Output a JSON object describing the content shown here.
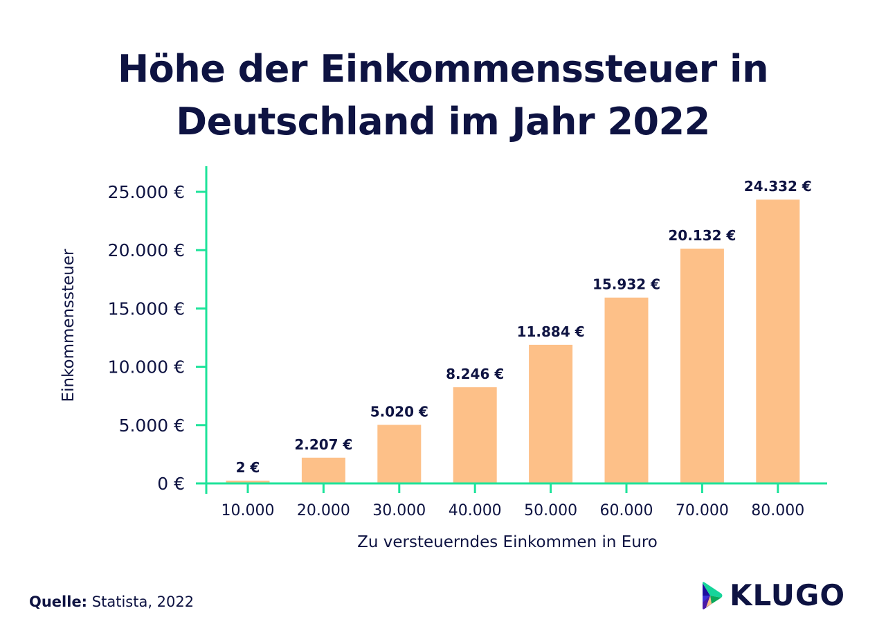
{
  "colors": {
    "title": "#0e1342",
    "axis": "#1de39a",
    "bar": "#fdc088",
    "text": "#0e1342"
  },
  "source": {
    "label": "Quelle:",
    "value": "Statista, 2022"
  },
  "logo": {
    "text": "KLUGO"
  },
  "chart_data": {
    "type": "bar",
    "title_lines": [
      "Höhe der Einkommenssteuer in",
      "Deutschland im Jahr 2022"
    ],
    "xlabel": "Zu versteuerndes Einkommen in Euro",
    "ylabel": "Einkommenssteuer",
    "categories": [
      "10.000",
      "20.000",
      "30.000",
      "40.000",
      "50.000",
      "60.000",
      "70.000",
      "80.000"
    ],
    "values": [
      2,
      2207,
      5020,
      8246,
      11884,
      15932,
      20132,
      24332
    ],
    "data_labels": [
      "2 €",
      "2.207 €",
      "5.020 €",
      "8.246 €",
      "11.884 €",
      "15.932 €",
      "20.132 €",
      "24.332 €"
    ],
    "ylim": [
      0,
      25000
    ],
    "yticks": [
      0,
      5000,
      10000,
      15000,
      20000,
      25000
    ],
    "ytick_labels": [
      "0 €",
      "5.000 €",
      "10.000 €",
      "15.000 €",
      "20.000 €",
      "25.000 €"
    ],
    "grid": false,
    "legend": "none"
  }
}
